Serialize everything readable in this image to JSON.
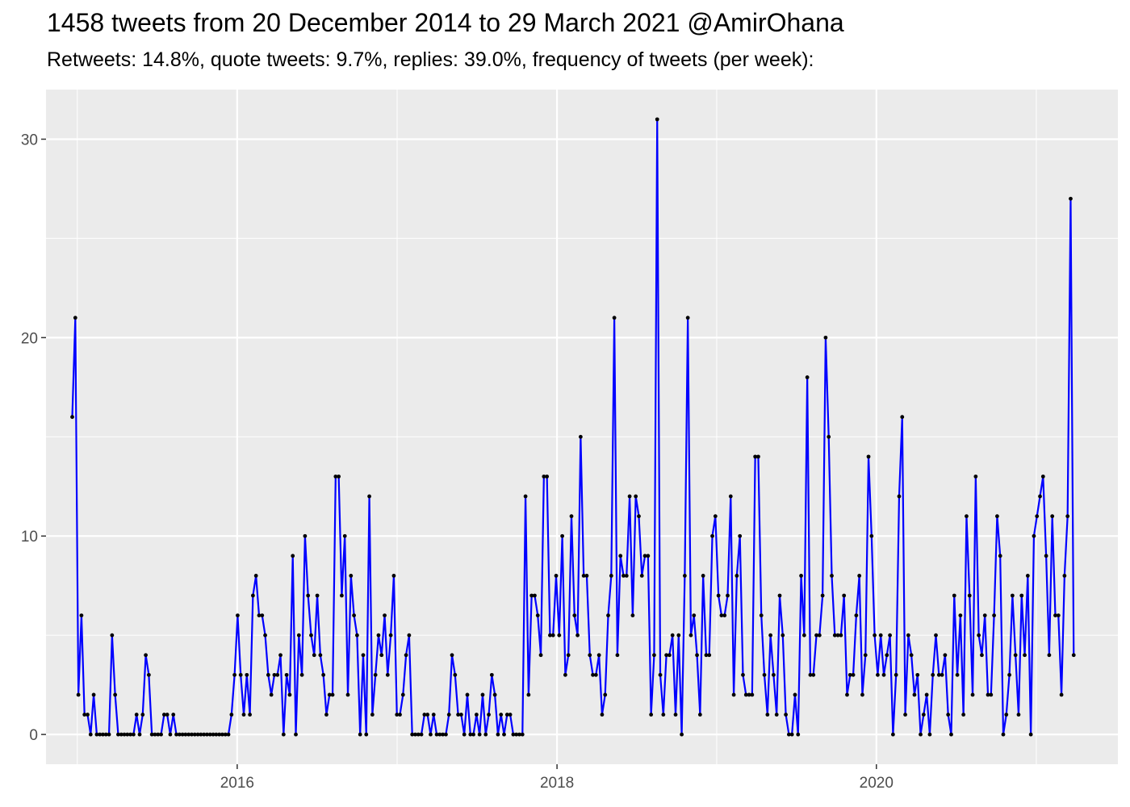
{
  "title": "1458 tweets from 20 December 2014 to 29 March 2021 @AmirOhana",
  "subtitle": "Retweets: 14.8%, quote tweets: 9.7%, replies: 39.0%, frequency of tweets (per week):",
  "colors": {
    "line": "#0000ff",
    "point": "#000000",
    "panel": "#ebebeb",
    "grid": "#ffffff"
  },
  "chart_data": {
    "type": "line",
    "title": "1458 tweets from 20 December 2014 to 29 March 2021 @AmirOhana",
    "subtitle": "Retweets: 14.8%, quote tweets: 9.7%, replies: 39.0%, frequency of tweets (per week):",
    "xlabel": "",
    "ylabel": "",
    "x_start": "2014-12-20",
    "x_interval_days": 7,
    "xlim": [
      "2014-10-21",
      "2021-07-06"
    ],
    "ylim": [
      -1.5,
      32.5
    ],
    "x_ticks": [
      {
        "date": "2016-01-01",
        "label": "2016"
      },
      {
        "date": "2018-01-01",
        "label": "2018"
      },
      {
        "date": "2020-01-01",
        "label": "2020"
      }
    ],
    "y_ticks": [
      0,
      10,
      20,
      30
    ],
    "grid": true,
    "series": [
      {
        "values": [
          16,
          21,
          2,
          6,
          1,
          1,
          0,
          2,
          0,
          0,
          0,
          0,
          0,
          5,
          2,
          0,
          0,
          0,
          0,
          0,
          0,
          1,
          0,
          1,
          4,
          3,
          0,
          0,
          0,
          0,
          1,
          1,
          0,
          1,
          0,
          0,
          0,
          0,
          0,
          0,
          0,
          0,
          0,
          0,
          0,
          0,
          0,
          0,
          0,
          0,
          0,
          0,
          1,
          3,
          6,
          3,
          1,
          3,
          1,
          7,
          8,
          6,
          6,
          5,
          3,
          2,
          3,
          3,
          4,
          0,
          3,
          2,
          9,
          0,
          5,
          3,
          10,
          7,
          5,
          4,
          7,
          4,
          3,
          1,
          2,
          2,
          13,
          13,
          7,
          10,
          2,
          8,
          6,
          5,
          0,
          4,
          0,
          12,
          1,
          3,
          5,
          4,
          6,
          3,
          5,
          8,
          1,
          1,
          2,
          4,
          5,
          0,
          0,
          0,
          0,
          1,
          1,
          0,
          1,
          0,
          0,
          0,
          0,
          1,
          4,
          3,
          1,
          1,
          0,
          2,
          0,
          0,
          1,
          0,
          2,
          0,
          1,
          3,
          2,
          0,
          1,
          0,
          1,
          1,
          0,
          0,
          0,
          0,
          12,
          2,
          7,
          7,
          6,
          4,
          13,
          13,
          5,
          5,
          8,
          5,
          10,
          3,
          4,
          11,
          6,
          5,
          15,
          8,
          8,
          4,
          3,
          3,
          4,
          1,
          2,
          6,
          8,
          21,
          4,
          9,
          8,
          8,
          12,
          6,
          12,
          11,
          8,
          9,
          9,
          1,
          4,
          31,
          3,
          1,
          4,
          4,
          5,
          1,
          5,
          0,
          8,
          21,
          5,
          6,
          4,
          1,
          8,
          4,
          4,
          10,
          11,
          7,
          6,
          6,
          7,
          12,
          2,
          8,
          10,
          3,
          2,
          2,
          2,
          14,
          14,
          6,
          3,
          1,
          5,
          3,
          1,
          7,
          5,
          1,
          0,
          0,
          2,
          0,
          8,
          5,
          18,
          3,
          3,
          5,
          5,
          7,
          20,
          15,
          8,
          5,
          5,
          5,
          7,
          2,
          3,
          3,
          6,
          8,
          2,
          4,
          14,
          10,
          5,
          3,
          5,
          3,
          4,
          5,
          0,
          3,
          12,
          16,
          1,
          5,
          4,
          2,
          3,
          0,
          1,
          2,
          0,
          3,
          5,
          3,
          3,
          4,
          1,
          0,
          7,
          3,
          6,
          1,
          11,
          7,
          2,
          13,
          5,
          4,
          6,
          2,
          2,
          6,
          11,
          9,
          0,
          1,
          3,
          7,
          4,
          1,
          7,
          4,
          8,
          0,
          10,
          11,
          12,
          13,
          9,
          4,
          11,
          6,
          6,
          2,
          8,
          11,
          27,
          4
        ]
      }
    ]
  }
}
